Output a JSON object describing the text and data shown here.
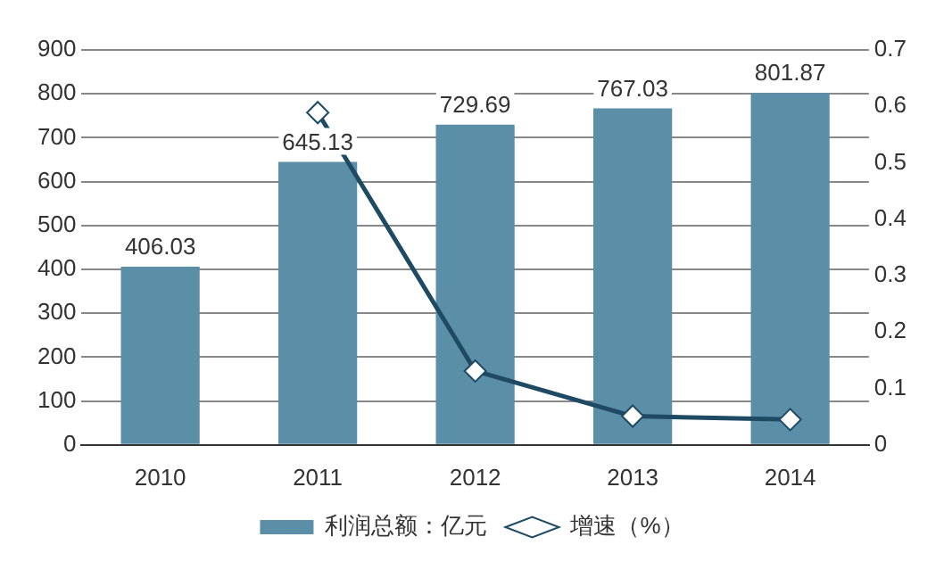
{
  "chart_data": {
    "type": "bar",
    "categories": [
      "2010",
      "2011",
      "2012",
      "2013",
      "2014"
    ],
    "series": [
      {
        "name": "利润总额：亿元",
        "color": "#5b8fa8",
        "values": [
          406.03,
          645.13,
          729.69,
          767.03,
          801.87
        ],
        "value_labels": [
          "406.03",
          "645.13",
          "729.69",
          "767.03",
          "801.87"
        ]
      },
      {
        "name": "增速（%）",
        "type": "line",
        "axis": "y2",
        "color": "#1f4a63",
        "values": [
          null,
          0.589,
          0.131,
          0.051,
          0.045
        ],
        "marker": "diamond"
      }
    ],
    "ylim": [
      0,
      900
    ],
    "yticks": [
      0,
      100,
      200,
      300,
      400,
      500,
      600,
      700,
      800,
      900
    ],
    "y2lim": [
      0,
      0.7
    ],
    "y2ticks": [
      0,
      0.1,
      0.2,
      0.3,
      0.4,
      0.5,
      0.6,
      0.7
    ],
    "grid": "y",
    "legend": "bottom"
  }
}
